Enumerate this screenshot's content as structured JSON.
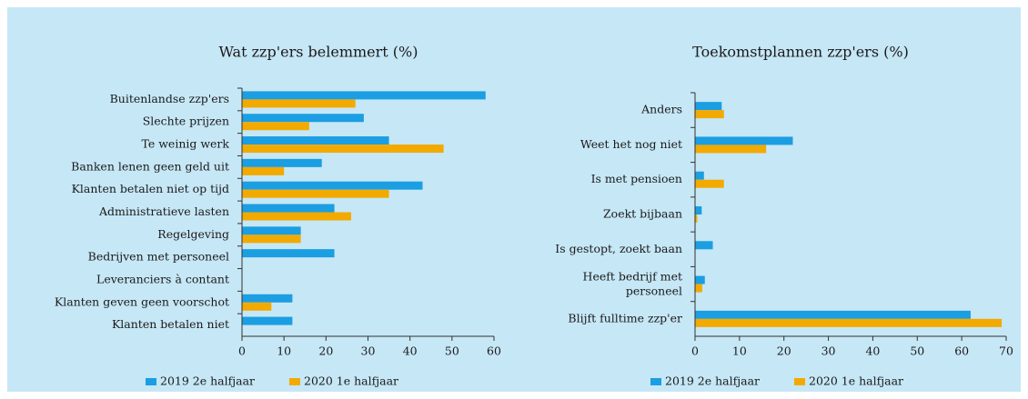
{
  "chart_data": [
    {
      "type": "bar",
      "orientation": "horizontal",
      "title": "Wat zzp'ers belemmert (%)",
      "categories": [
        "Buitenlandse zzp'ers",
        "Slechte prijzen",
        "Te weinig werk",
        "Banken lenen geen geld uit",
        "Klanten betalen niet op tijd",
        "Administratieve lasten",
        "Regelgeving",
        "Bedrijven met personeel",
        "Leveranciers à contant",
        "Klanten geven geen voorschot",
        "Klanten betalen niet"
      ],
      "series": [
        {
          "name": "2019 2e halfjaar",
          "color": "#1b9ee2",
          "values": [
            58,
            29,
            35,
            19,
            43,
            22,
            14,
            22,
            0,
            12,
            12
          ]
        },
        {
          "name": "2020 1e halfjaar",
          "color": "#f2aa00",
          "values": [
            27,
            16,
            48,
            10,
            35,
            26,
            14,
            0,
            0,
            7,
            0
          ]
        }
      ],
      "xlim": [
        0,
        60
      ],
      "xticks": [
        0,
        10,
        20,
        30,
        40,
        50,
        60
      ],
      "legend": "bottom"
    },
    {
      "type": "bar",
      "orientation": "horizontal",
      "title": "Toekomstplannen zzp'ers (%)",
      "categories": [
        "Anders",
        "Weet het nog niet",
        "Is met pensioen",
        "Zoekt bijbaan",
        "Is gestopt, zoekt baan",
        "Heeft bedrijf met personeel",
        "Blijft fulltime zzp'er"
      ],
      "series": [
        {
          "name": "2019 2e halfjaar",
          "color": "#1b9ee2",
          "values": [
            6,
            22,
            2,
            1.5,
            4,
            2.2,
            62
          ]
        },
        {
          "name": "2020 1e halfjaar",
          "color": "#f2aa00",
          "values": [
            6.5,
            16,
            6.5,
            0.5,
            0,
            1.6,
            69
          ]
        }
      ],
      "xlim": [
        0,
        70
      ],
      "xticks": [
        0,
        10,
        20,
        30,
        40,
        50,
        60,
        70
      ],
      "legend": "bottom"
    }
  ]
}
